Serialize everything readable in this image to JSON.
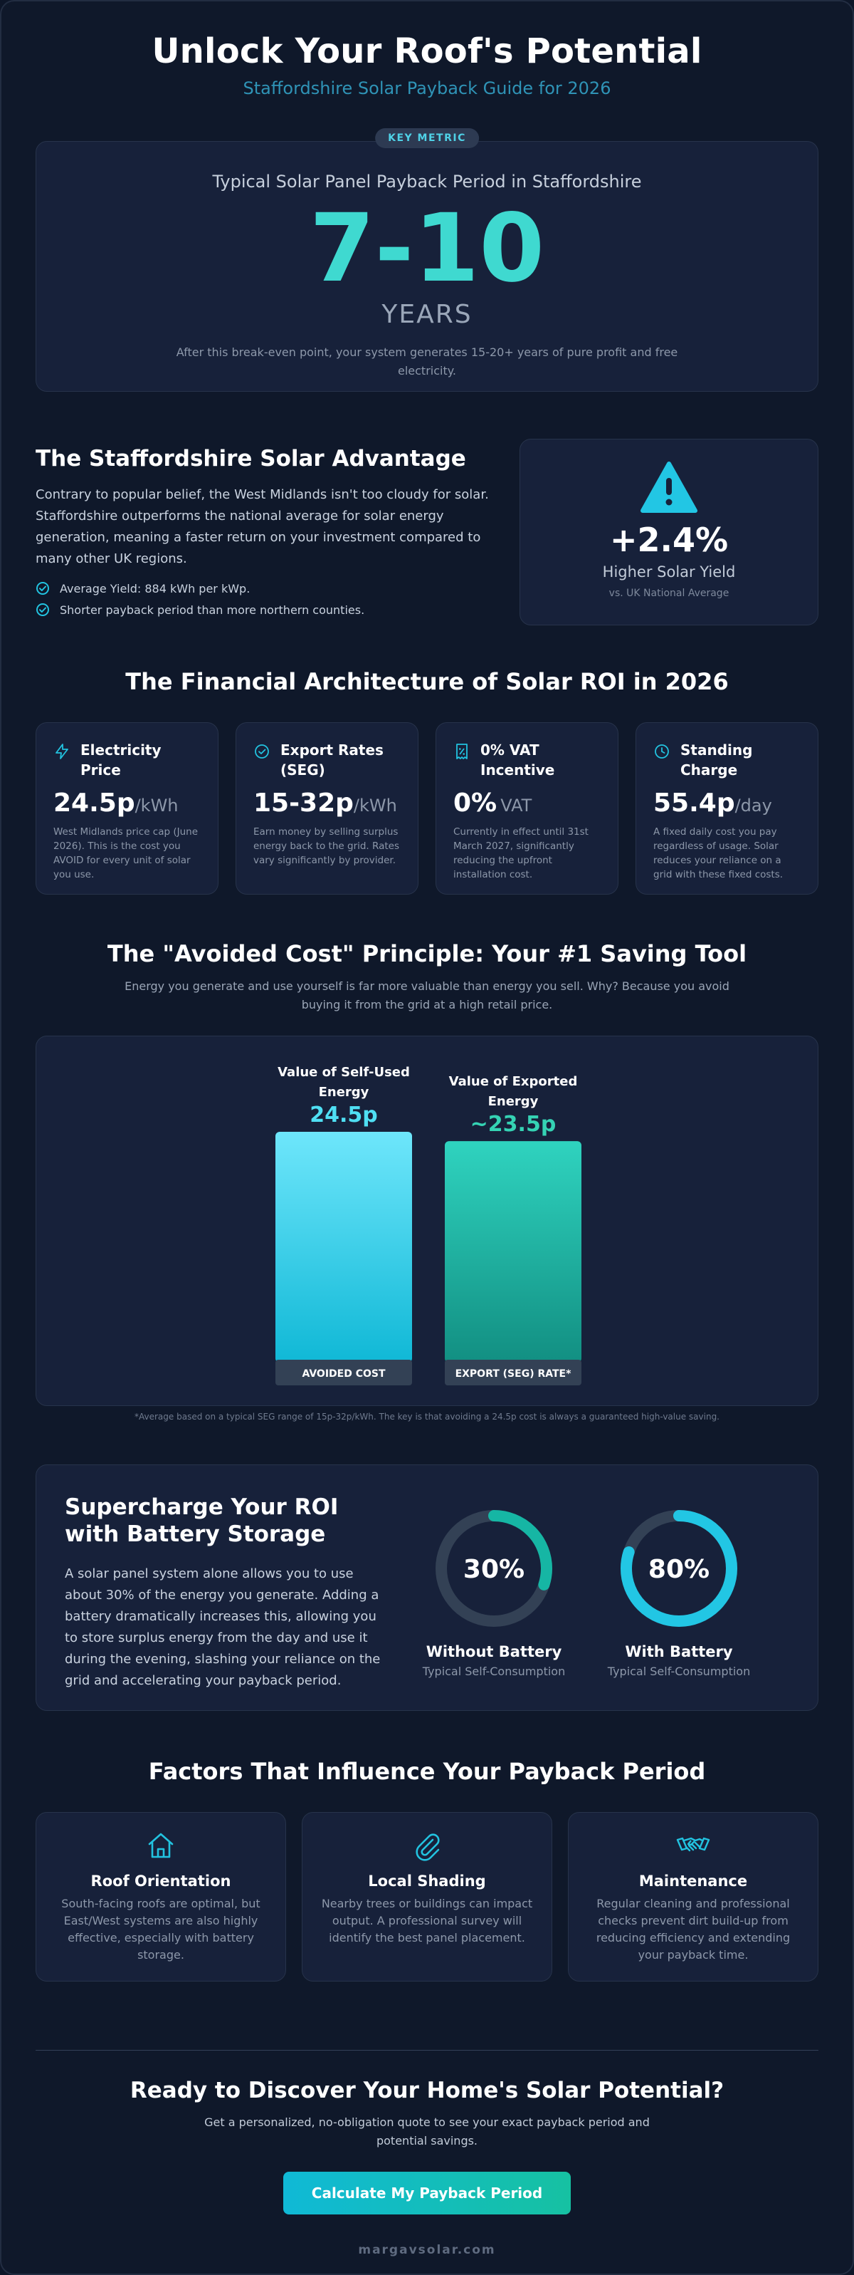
{
  "header": {
    "title": "Unlock Your Roof's Potential",
    "subtitle": "Staffordshire Solar Payback Guide for 2026"
  },
  "key_metric": {
    "badge": "KEY METRIC",
    "title": "Typical Solar Panel Payback Period in Staffordshire",
    "value": "7-10",
    "unit": "YEARS",
    "note": "After this break-even point, your system generates 15-20+ years of pure profit and free electricity."
  },
  "advantage": {
    "title": "The Staffordshire Solar Advantage",
    "text": "Contrary to popular belief, the West Midlands isn't too cloudy for solar. Staffordshire outperforms the national average for solar energy generation, meaning a faster return on your investment compared to many other UK regions.",
    "checks": [
      "Average Yield: 884 kWh per kWp.",
      "Shorter payback period than more northern counties."
    ],
    "stat_value": "+2.4%",
    "stat_label": "Higher Solar Yield",
    "stat_note": "vs. UK National Average",
    "icon": "warning-icon"
  },
  "financial": {
    "title": "The Financial Architecture of Solar ROI in 2026",
    "cards": [
      {
        "title": "Electricity Price",
        "value": "24.5p",
        "unit": "/kWh",
        "desc": "West Midlands price cap (June 2026). This is the cost you AVOID for every unit of solar you use.",
        "icon": "lightning-icon"
      },
      {
        "title": "Export Rates (SEG)",
        "value": "15-32p",
        "unit": "/kWh",
        "desc": "Earn money by selling surplus energy back to the grid. Rates vary significantly by provider.",
        "icon": "check-circle-icon"
      },
      {
        "title": "0% VAT Incentive",
        "value": "0%",
        "unit": "VAT",
        "desc": "Currently in effect until 31st March 2027, significantly reducing the upfront installation cost.",
        "icon": "receipt-icon"
      },
      {
        "title": "Standing Charge",
        "value": "55.4p",
        "unit": "/day",
        "desc": "A fixed daily cost you pay regardless of usage. Solar reduces your reliance on a grid with these fixed costs.",
        "icon": "clock-icon"
      }
    ]
  },
  "avoided_cost": {
    "title": "The \"Avoided Cost\" Principle: Your #1 Saving Tool",
    "subtitle": "Energy you generate and use yourself is far more valuable than energy you sell. Why? Because you avoid buying it from the grid at a high retail price.",
    "footnote": "*Average based on a typical SEG range of 15p-32p/kWh. The key is that avoiding a 24.5p cost is always a guaranteed high-value saving."
  },
  "chart_data": {
    "type": "bar",
    "categories": [
      "AVOIDED COST",
      "EXPORT (SEG) RATE*"
    ],
    "series_titles": [
      "Value of Self-Used Energy",
      "Value of Exported Energy"
    ],
    "value_labels": [
      "24.5p",
      "~23.5p"
    ],
    "values": [
      24.5,
      23.5
    ],
    "unit": "p/kWh",
    "colors": [
      "#22c3e0",
      "#18b5a0"
    ]
  },
  "battery": {
    "title": "Supercharge Your ROI with Battery Storage",
    "text": "A solar panel system alone allows you to use about 30% of the energy you generate. Adding a battery dramatically increases this, allowing you to store surplus energy from the day and use it during the evening, slashing your reliance on the grid and accelerating your payback period.",
    "donuts": [
      {
        "value": 30,
        "label": "30%",
        "caption": "Without Battery",
        "sub": "Typical Self-Consumption",
        "color": "#16b6a4"
      },
      {
        "value": 80,
        "label": "80%",
        "caption": "With Battery",
        "sub": "Typical Self-Consumption",
        "color": "#22c6e4"
      }
    ]
  },
  "factors": {
    "title": "Factors That Influence Your Payback Period",
    "cards": [
      {
        "title": "Roof Orientation",
        "desc": "South-facing roofs are optimal, but East/West systems are also highly effective, especially with battery storage.",
        "icon": "house-icon"
      },
      {
        "title": "Local Shading",
        "desc": "Nearby trees or buildings can impact output. A professional survey will identify the best panel placement.",
        "icon": "paperclip-icon"
      },
      {
        "title": "Maintenance",
        "desc": "Regular cleaning and professional checks prevent dirt build-up from reducing efficiency and extending your payback time.",
        "icon": "handshake-icon"
      }
    ]
  },
  "cta": {
    "title": "Ready to Discover Your Home's Solar Potential?",
    "subtitle": "Get a personalized, no-obligation quote to see your exact payback period and potential savings.",
    "button": "Calculate My Payback Period"
  },
  "footer": "margavsolar.com"
}
